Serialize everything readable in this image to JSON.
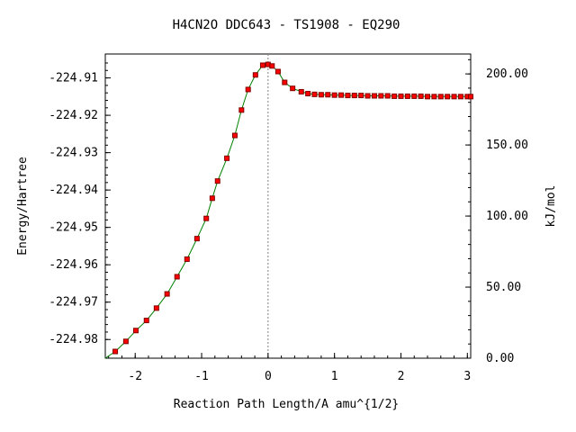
{
  "chart_data": {
    "type": "line",
    "title": "H4CN2O   DDC643 - TS1908 - EQ290",
    "xlabel": "Reaction Path Length/A amu^{1/2}",
    "ylabel": "Energy/Hartree",
    "y2label": "kJ/mol",
    "xlim": [
      -2.45,
      3.05
    ],
    "ylim": [
      -224.985,
      -224.9036
    ],
    "y2lim": [
      0.0,
      214.0
    ],
    "xticks": [
      "-2",
      "-1",
      "0",
      "1",
      "2",
      "3"
    ],
    "yticks": [
      "-224.91",
      "-224.92",
      "-224.93",
      "-224.94",
      "-224.95",
      "-224.96",
      "-224.97",
      "-224.98"
    ],
    "y2ticks": [
      "200.00",
      "150.00",
      "100.00",
      "50.00",
      "0.00"
    ],
    "ts_marker_x": 0.0,
    "line_color": "#008000",
    "marker_color": "#ff0000",
    "marker_edge_color": "#800000",
    "guide_color": "#808080",
    "series": [
      {
        "x": [
          -2.3,
          -2.14,
          -1.99,
          -1.83,
          -1.68,
          -1.52,
          -1.37,
          -1.22,
          -1.07,
          -0.93,
          -0.84,
          -0.76,
          -0.62,
          -0.5,
          -0.4,
          -0.3,
          -0.19,
          -0.08,
          0.0,
          0.06,
          0.15,
          0.25,
          0.37,
          0.5,
          0.6,
          0.7,
          0.8,
          0.9,
          1.0,
          1.1,
          1.2,
          1.3,
          1.4,
          1.5,
          1.6,
          1.7,
          1.8,
          1.9,
          2.0,
          2.1,
          2.2,
          2.3,
          2.4,
          2.5,
          2.6,
          2.7,
          2.8,
          2.9,
          3.0,
          3.05
        ],
        "y": [
          -224.9832,
          -224.9805,
          -224.9776,
          -224.9749,
          -224.9716,
          -224.9678,
          -224.9632,
          -224.9585,
          -224.953,
          -224.9476,
          -224.9422,
          -224.9376,
          -224.9315,
          -224.9254,
          -224.9186,
          -224.9131,
          -224.9092,
          -224.9066,
          -224.9064,
          -224.9068,
          -224.9083,
          -224.9112,
          -224.9128,
          -224.9137,
          -224.9142,
          -224.9144,
          -224.9145,
          -224.9145,
          -224.9146,
          -224.9146,
          -224.9147,
          -224.9147,
          -224.9147,
          -224.9148,
          -224.9148,
          -224.9148,
          -224.9148,
          -224.9149,
          -224.9149,
          -224.9149,
          -224.9149,
          -224.9149,
          -224.915,
          -224.915,
          -224.915,
          -224.915,
          -224.915,
          -224.915,
          -224.915,
          -224.915
        ]
      }
    ]
  }
}
